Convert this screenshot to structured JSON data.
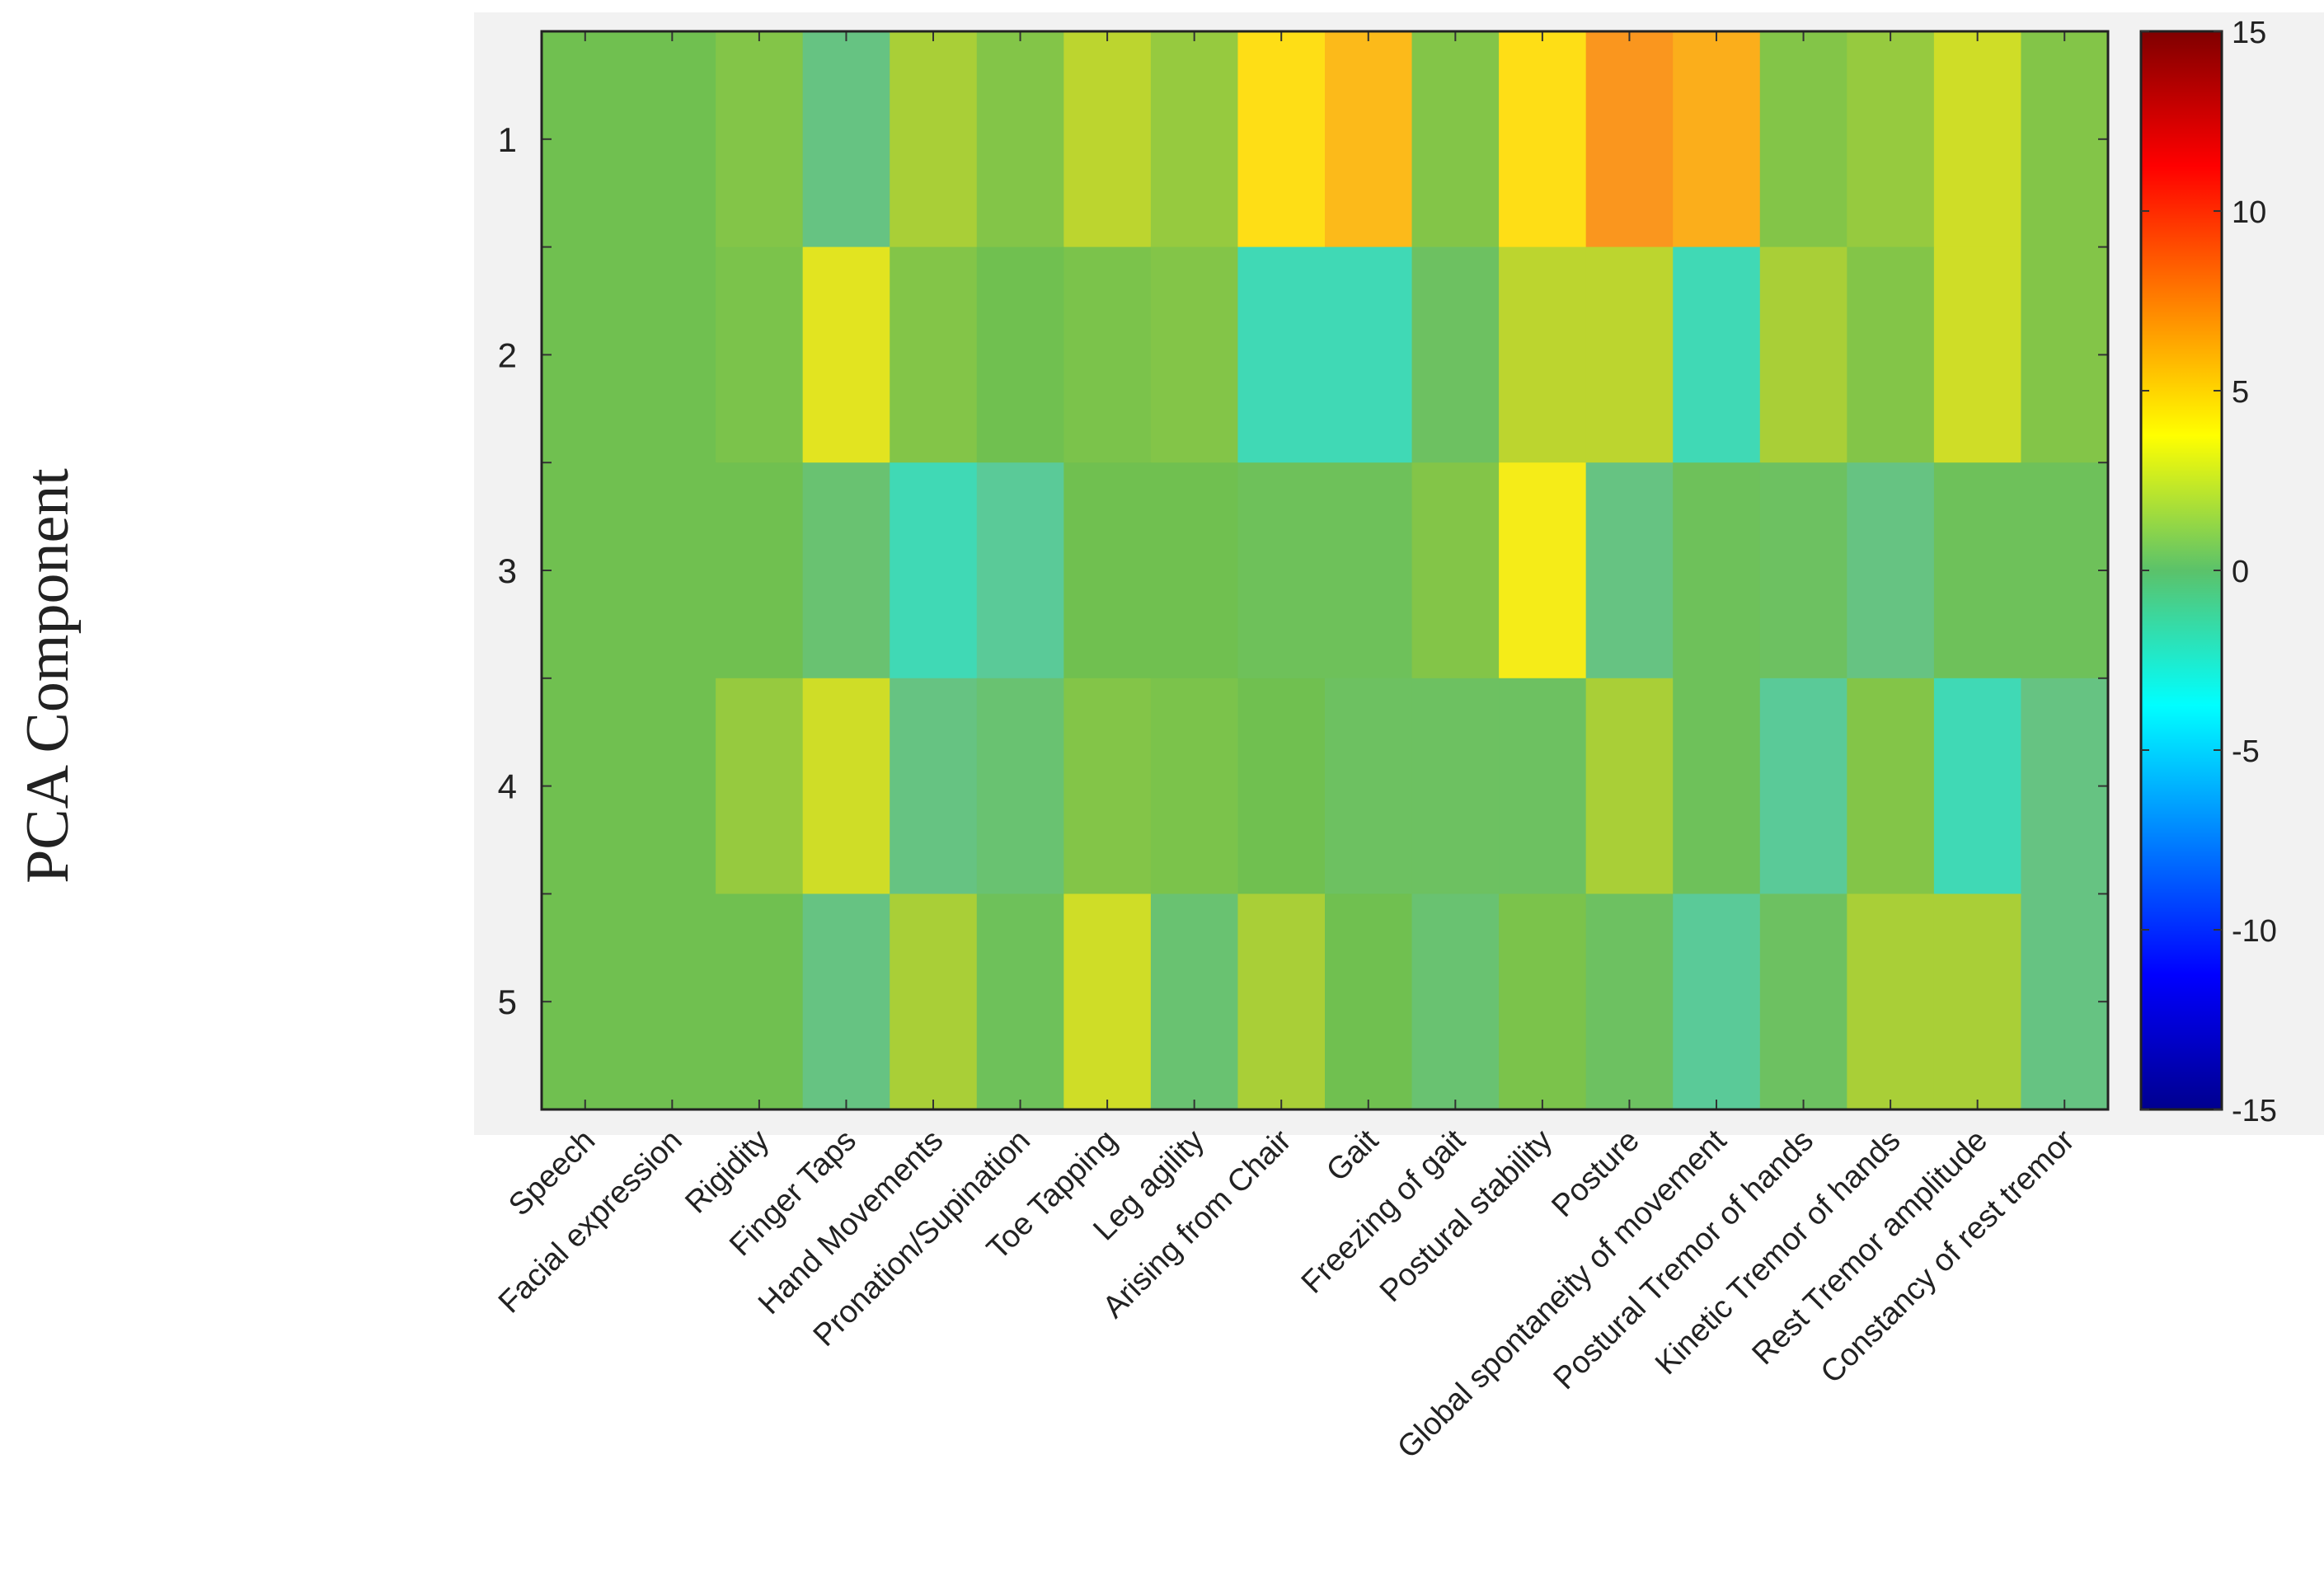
{
  "chart_data": {
    "type": "heatmap",
    "ylabel": "PCA Component",
    "rows": [
      "1",
      "2",
      "3",
      "4",
      "5"
    ],
    "columns": [
      "Speech",
      "Facial expression",
      "Rigidity",
      "Finger Taps",
      "Hand Movements",
      "Pronation/Supination",
      "Toe Tapping",
      "Leg agility",
      "Arising from Chair",
      "Gait",
      "Freezing of gait",
      "Postural stability",
      "Posture",
      "Global spontaneity of movement",
      "Postural Tremor of hands",
      "Kinetic Tremor of hands",
      "Rest Tremor amplitude",
      "Constancy of rest tremor"
    ],
    "values": [
      [
        0,
        0,
        0.5,
        -1.5,
        1.5,
        0.5,
        2.0,
        1.0,
        4.5,
        6.0,
        0.5,
        4.5,
        7.5,
        6.5,
        0.5,
        1.0,
        2.5,
        0.5
      ],
      [
        0,
        0,
        0.3,
        3.0,
        0.5,
        0,
        0.3,
        0.5,
        -2.5,
        -2.5,
        -0.5,
        2.0,
        2.0,
        -2.5,
        1.5,
        0.5,
        2.5,
        0.5
      ],
      [
        0,
        0,
        0,
        -1.0,
        -2.5,
        -2.0,
        0,
        0,
        -0.3,
        -0.3,
        0.5,
        3.5,
        -1.5,
        -0.3,
        -0.5,
        -1.5,
        -0.3,
        -0.3
      ],
      [
        0,
        0,
        1.0,
        2.5,
        -1.5,
        -1.0,
        0.5,
        0.3,
        0,
        -0.5,
        -0.5,
        -0.5,
        1.5,
        -0.3,
        -2.0,
        0.5,
        -2.5,
        -1.5
      ],
      [
        0,
        0,
        0,
        -1.5,
        1.5,
        -0.3,
        2.5,
        -1.0,
        1.5,
        0,
        -1.0,
        0.3,
        -0.5,
        -2.0,
        -0.5,
        1.5,
        1.5,
        -1.5
      ]
    ],
    "colorbar": {
      "min": -15,
      "max": 15,
      "ticks": [
        "15",
        "10",
        "5",
        "0",
        "-5",
        "-10",
        "-15"
      ],
      "colormap": "jet"
    },
    "grid": true,
    "legend": "colorbar-right"
  }
}
